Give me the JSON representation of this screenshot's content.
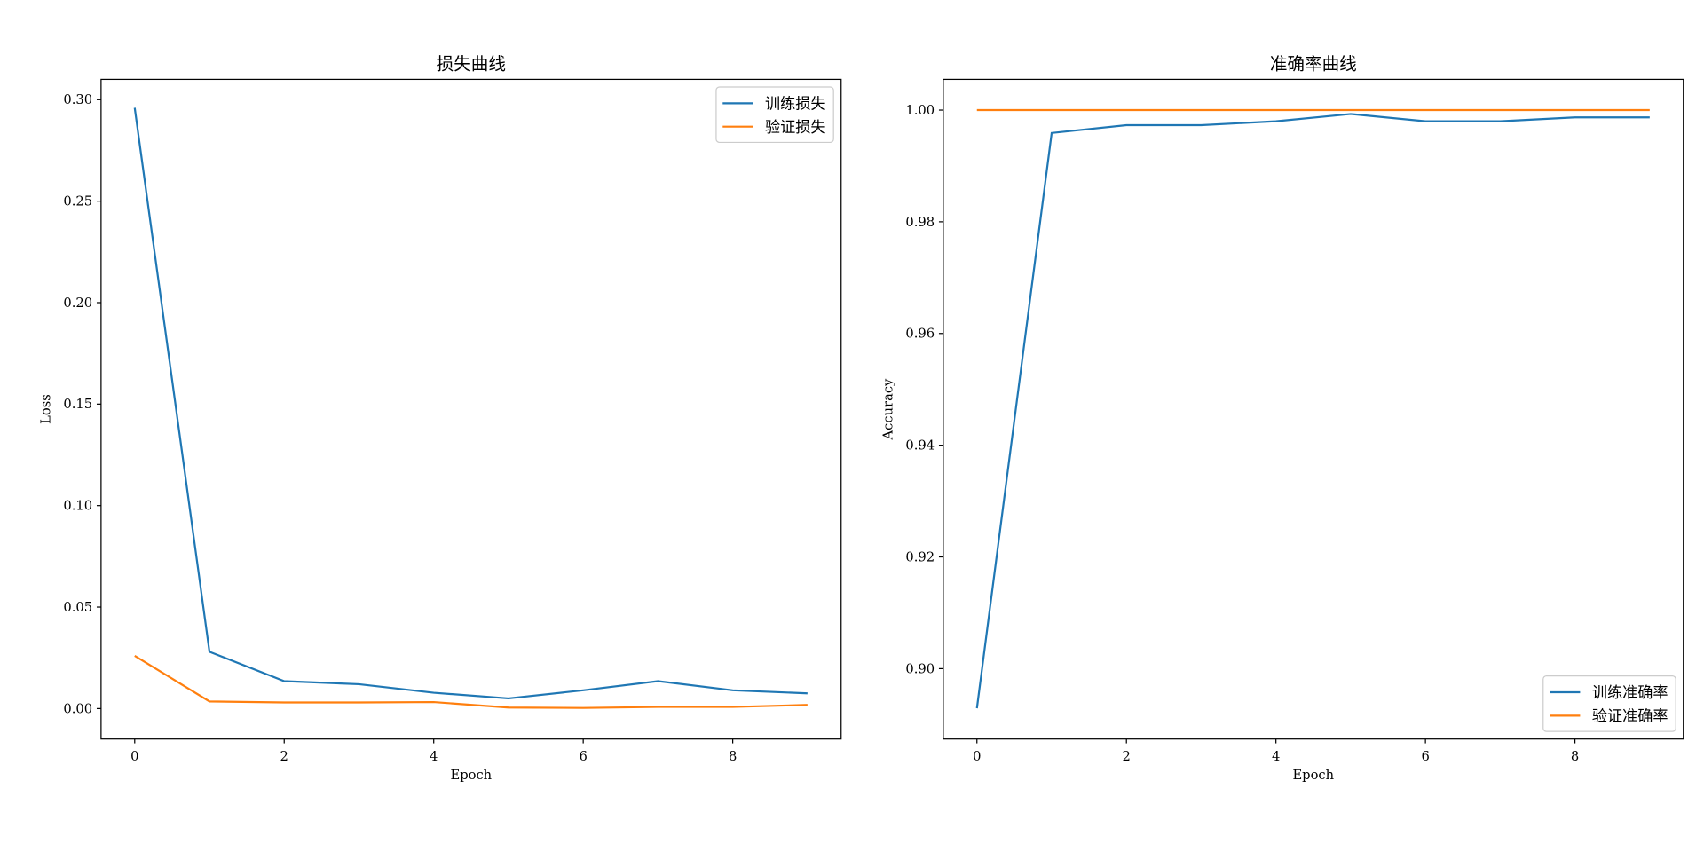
{
  "chart_data": [
    {
      "type": "line",
      "title": "损失曲线",
      "x_label": "Epoch",
      "y_label": "Loss",
      "x": [
        0,
        1,
        2,
        3,
        4,
        5,
        6,
        7,
        8,
        9
      ],
      "series": [
        {
          "name": "训练损失",
          "color": "#1f77b4",
          "values": [
            0.296,
            0.028,
            0.0135,
            0.012,
            0.0078,
            0.005,
            0.009,
            0.0135,
            0.009,
            0.0075
          ]
        },
        {
          "name": "验证损失",
          "color": "#ff7f0e",
          "values": [
            0.026,
            0.0035,
            0.003,
            0.003,
            0.0032,
            0.0005,
            0.0003,
            0.0008,
            0.0008,
            0.0018
          ]
        }
      ],
      "xlim": [
        -0.45,
        9.45
      ],
      "xticks": [
        0,
        2,
        4,
        6,
        8
      ],
      "ylim": [
        -0.015,
        0.31
      ],
      "yticks": [
        {
          "value": 0,
          "label": "0.00"
        },
        0.05,
        {
          "value": 0.1,
          "label": "0.10"
        },
        0.15,
        {
          "value": 0.2,
          "label": "0.20"
        },
        0.25,
        {
          "value": 0.3,
          "label": "0.30"
        }
      ],
      "legend": "upper right",
      "grid": false
    },
    {
      "type": "line",
      "title": "准确率曲线",
      "x_label": "Epoch",
      "y_label": "Accuracy",
      "x": [
        0,
        1,
        2,
        3,
        4,
        5,
        6,
        7,
        8,
        9
      ],
      "series": [
        {
          "name": "训练准确率",
          "color": "#1f77b4",
          "values": [
            0.8929,
            0.9959,
            0.9973,
            0.9973,
            0.998,
            0.9993,
            0.998,
            0.998,
            0.9987,
            0.9987
          ]
        },
        {
          "name": "验证准确率",
          "color": "#ff7f0e",
          "values": [
            1,
            1,
            1,
            1,
            1,
            1,
            1,
            1,
            1,
            1
          ]
        }
      ],
      "xlim": [
        -0.45,
        9.45
      ],
      "xticks": [
        0,
        2,
        4,
        6,
        8
      ],
      "ylim": [
        0.8874,
        1.0055
      ],
      "yticks": [
        {
          "value": 0.9,
          "label": "0.90"
        },
        0.92,
        0.94,
        0.96,
        0.98,
        {
          "value": 1,
          "label": "1.00"
        }
      ],
      "legend": "lower right",
      "grid": false
    }
  ]
}
